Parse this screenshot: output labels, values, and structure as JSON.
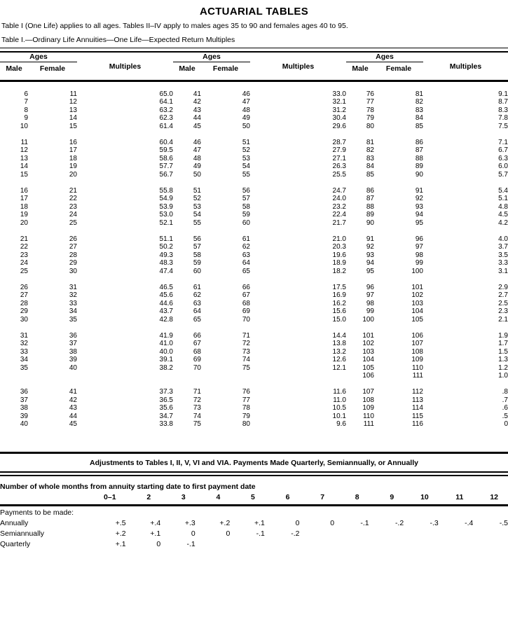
{
  "page": {
    "title": "ACTUARIAL TABLES",
    "intro": "Table I (One Life) applies to all ages. Tables II–IV apply to males ages 35 to 90 and females ages 40 to 95.",
    "caption": "Table I.—Ordinary Life Annuities—One Life—Expected Return Multiples"
  },
  "main_table": {
    "headers": {
      "ages": "Ages",
      "male": "Male",
      "female": "Female",
      "multiples": "Multiples"
    },
    "bands": [
      [
        [
          "6",
          "11",
          "65.0",
          "41",
          "46",
          "33.0",
          "76",
          "81",
          "9.1"
        ],
        [
          "7",
          "12",
          "64.1",
          "42",
          "47",
          "32.1",
          "77",
          "82",
          "8.7"
        ],
        [
          "8",
          "13",
          "63.2",
          "43",
          "48",
          "31.2",
          "78",
          "83",
          "8.3"
        ],
        [
          "9",
          "14",
          "62.3",
          "44",
          "49",
          "30.4",
          "79",
          "84",
          "7.8"
        ],
        [
          "10",
          "15",
          "61.4",
          "45",
          "50",
          "29.6",
          "80",
          "85",
          "7.5"
        ]
      ],
      [
        [
          "11",
          "16",
          "60.4",
          "46",
          "51",
          "28.7",
          "81",
          "86",
          "7.1"
        ],
        [
          "12",
          "17",
          "59.5",
          "47",
          "52",
          "27.9",
          "82",
          "87",
          "6.7"
        ],
        [
          "13",
          "18",
          "58.6",
          "48",
          "53",
          "27.1",
          "83",
          "88",
          "6.3"
        ],
        [
          "14",
          "19",
          "57.7",
          "49",
          "54",
          "26.3",
          "84",
          "89",
          "6.0"
        ],
        [
          "15",
          "20",
          "56.7",
          "50",
          "55",
          "25.5",
          "85",
          "90",
          "5.7"
        ]
      ],
      [
        [
          "16",
          "21",
          "55.8",
          "51",
          "56",
          "24.7",
          "86",
          "91",
          "5.4"
        ],
        [
          "17",
          "22",
          "54.9",
          "52",
          "57",
          "24.0",
          "87",
          "92",
          "5.1"
        ],
        [
          "18",
          "23",
          "53.9",
          "53",
          "58",
          "23.2",
          "88",
          "93",
          "4.8"
        ],
        [
          "19",
          "24",
          "53.0",
          "54",
          "59",
          "22.4",
          "89",
          "94",
          "4.5"
        ],
        [
          "20",
          "25",
          "52.1",
          "55",
          "60",
          "21.7",
          "90",
          "95",
          "4.2"
        ]
      ],
      [
        [
          "21",
          "26",
          "51.1",
          "56",
          "61",
          "21.0",
          "91",
          "96",
          "4.0"
        ],
        [
          "22",
          "27",
          "50.2",
          "57",
          "62",
          "20.3",
          "92",
          "97",
          "3.7"
        ],
        [
          "23",
          "28",
          "49.3",
          "58",
          "63",
          "19.6",
          "93",
          "98",
          "3.5"
        ],
        [
          "24",
          "29",
          "48.3",
          "59",
          "64",
          "18.9",
          "94",
          "99",
          "3.3"
        ],
        [
          "25",
          "30",
          "47.4",
          "60",
          "65",
          "18.2",
          "95",
          "100",
          "3.1"
        ]
      ],
      [
        [
          "26",
          "31",
          "46.5",
          "61",
          "66",
          "17.5",
          "96",
          "101",
          "2.9"
        ],
        [
          "27",
          "32",
          "45.6",
          "62",
          "67",
          "16.9",
          "97",
          "102",
          "2.7"
        ],
        [
          "28",
          "33",
          "44.6",
          "63",
          "68",
          "16.2",
          "98",
          "103",
          "2.5"
        ],
        [
          "29",
          "34",
          "43.7",
          "64",
          "69",
          "15.6",
          "99",
          "104",
          "2.3"
        ],
        [
          "30",
          "35",
          "42.8",
          "65",
          "70",
          "15.0",
          "100",
          "105",
          "2.1"
        ]
      ],
      [
        [
          "31",
          "36",
          "41.9",
          "66",
          "71",
          "14.4",
          "101",
          "106",
          "1.9"
        ],
        [
          "32",
          "37",
          "41.0",
          "67",
          "72",
          "13.8",
          "102",
          "107",
          "1.7"
        ],
        [
          "33",
          "38",
          "40.0",
          "68",
          "73",
          "13.2",
          "103",
          "108",
          "1.5"
        ],
        [
          "34",
          "39",
          "39.1",
          "69",
          "74",
          "12.6",
          "104",
          "109",
          "1.3"
        ],
        [
          "35",
          "40",
          "38.2",
          "70",
          "75",
          "12.1",
          "105",
          "110",
          "1.2"
        ],
        [
          "",
          "",
          "",
          "",
          "",
          "",
          "106",
          "111",
          "1.0"
        ]
      ],
      [
        [
          "36",
          "41",
          "37.3",
          "71",
          "76",
          "11.6",
          "107",
          "112",
          ".8"
        ],
        [
          "37",
          "42",
          "36.5",
          "72",
          "77",
          "11.0",
          "108",
          "113",
          ".7"
        ],
        [
          "38",
          "43",
          "35.6",
          "73",
          "78",
          "10.5",
          "109",
          "114",
          ".6"
        ],
        [
          "39",
          "44",
          "34.7",
          "74",
          "79",
          "10.1",
          "110",
          "115",
          ".5"
        ],
        [
          "40",
          "45",
          "33.8",
          "75",
          "80",
          "9.6",
          "111",
          "116",
          "0"
        ]
      ]
    ]
  },
  "adjustments": {
    "title": "Adjustments to Tables I, II, V, VI and VIA. Payments Made Quarterly, Semiannually, or Annually",
    "months_header": "Number of whole months from annuity starting date to first payment date",
    "columns": [
      "0–1",
      "2",
      "3",
      "4",
      "5",
      "6",
      "7",
      "8",
      "9",
      "10",
      "11",
      "12"
    ],
    "payments_label": "Payments to be made:",
    "rows": [
      {
        "label": "Annually",
        "values": [
          "+.5",
          "+.4",
          "+.3",
          "+.2",
          "+.1",
          "0",
          "0",
          "-.1",
          "-.2",
          "-.3",
          "-.4",
          "-.5"
        ]
      },
      {
        "label": "Semiannually",
        "values": [
          "+.2",
          "+.1",
          "0",
          "0",
          "-.1",
          "-.2",
          "",
          "",
          "",
          "",
          "",
          ""
        ]
      },
      {
        "label": "Quarterly",
        "values": [
          "+.1",
          "0",
          "-.1",
          "",
          "",
          "",
          "",
          "",
          "",
          "",
          "",
          ""
        ]
      }
    ]
  },
  "colors": {
    "ink": "#000000",
    "paper": "#ffffff"
  }
}
